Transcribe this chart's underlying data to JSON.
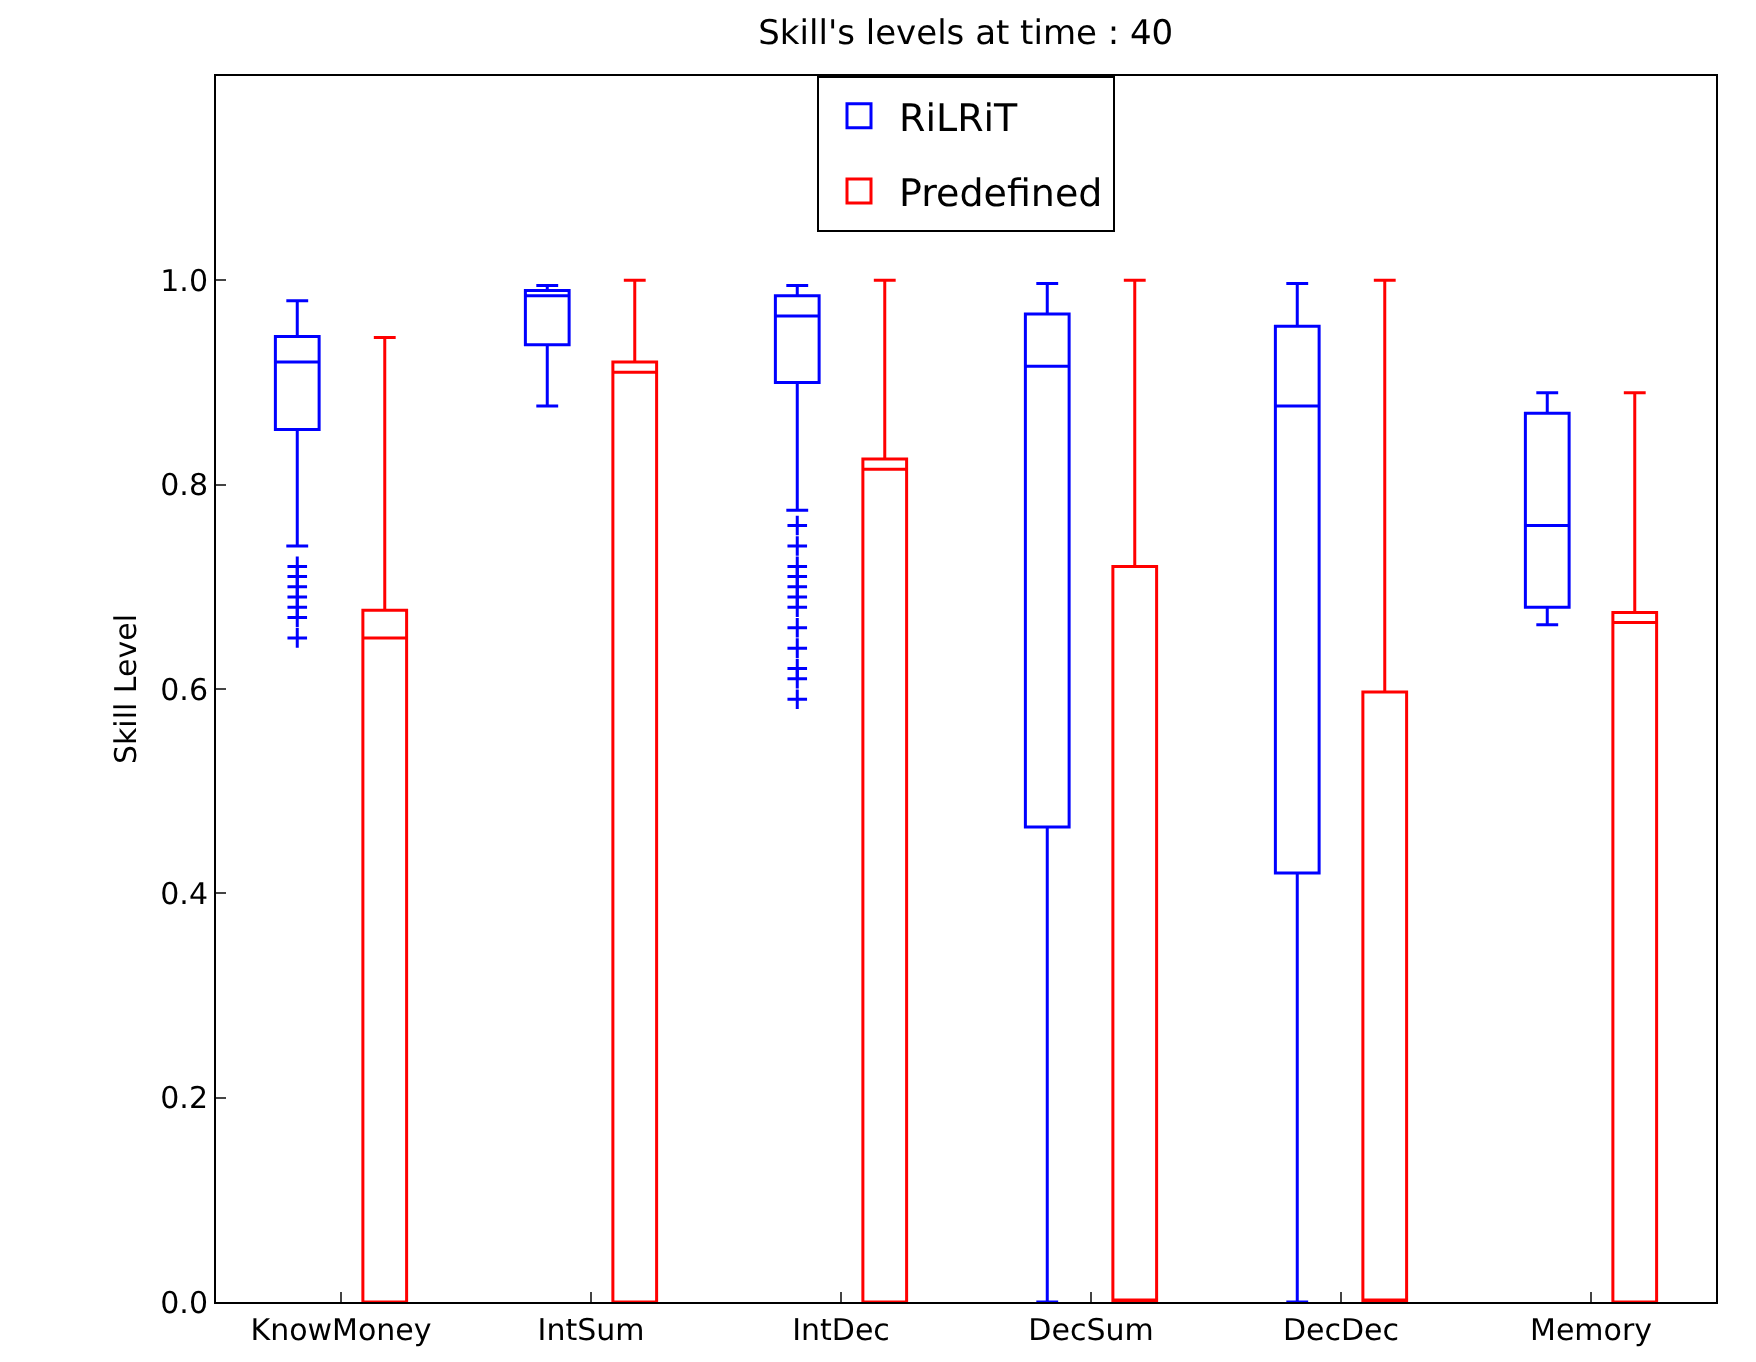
{
  "chart_data": {
    "type": "box",
    "title": "Skill's levels at time : 40",
    "ylabel": "Skill Level",
    "categories": [
      "KnowMoney",
      "IntSum",
      "IntDec",
      "DecSum",
      "DecDec",
      "Memory"
    ],
    "ylim": [
      0,
      1.2
    ],
    "yticks": [
      {
        "value": 0,
        "label": "0.0"
      },
      {
        "value": 0.2,
        "label": "0.2"
      },
      {
        "value": 0.4,
        "label": "0.4"
      },
      {
        "value": 0.6,
        "label": "0.6"
      },
      {
        "value": 0.8,
        "label": "0.8"
      },
      {
        "value": 1,
        "label": "1.0"
      }
    ],
    "grid": false,
    "legend": "top",
    "marker": "cross",
    "series": [
      {
        "name": "RiLRiT",
        "color": "#0000ff",
        "boxes": [
          {
            "low": 0.74,
            "q1": 0.854,
            "median": 0.92,
            "q3": 0.945,
            "high": 0.98,
            "outliers": [
              0.72,
              0.71,
              0.7,
              0.69,
              0.68,
              0.67,
              0.65
            ]
          },
          {
            "low": 0.877,
            "q1": 0.937,
            "median": 0.985,
            "q3": 0.99,
            "high": 0.995
          },
          {
            "low": 0.775,
            "q1": 0.9,
            "median": 0.965,
            "q3": 0.985,
            "high": 0.995,
            "outliers": [
              0.76,
              0.74,
              0.72,
              0.71,
              0.7,
              0.69,
              0.68,
              0.66,
              0.64,
              0.62,
              0.61,
              0.59
            ]
          },
          {
            "low": 0,
            "q1": 0.465,
            "median": 0.916,
            "q3": 0.967,
            "high": 0.997
          },
          {
            "low": 0,
            "q1": 0.42,
            "median": 0.877,
            "q3": 0.955,
            "high": 0.997
          },
          {
            "low": 0.663,
            "q1": 0.68,
            "median": 0.76,
            "q3": 0.87,
            "high": 0.89
          }
        ]
      },
      {
        "name": "Predefined",
        "color": "#ff0000",
        "boxes": [
          {
            "low": 0,
            "q1": 0,
            "median": 0.65,
            "q3": 0.677,
            "high": 0.944
          },
          {
            "low": 0,
            "q1": 0,
            "median": 0.91,
            "q3": 0.92,
            "high": 1.0
          },
          {
            "low": 0,
            "q1": 0,
            "median": 0.815,
            "q3": 0.825,
            "high": 1.0
          },
          {
            "low": 0,
            "q1": 0,
            "median": 0,
            "q3": 0.72,
            "high": 1.0
          },
          {
            "low": 0,
            "q1": 0,
            "median": 0,
            "q3": 0.597,
            "high": 1.0
          },
          {
            "low": 0,
            "q1": 0,
            "median": 0.665,
            "q3": 0.675,
            "high": 0.89
          }
        ]
      }
    ]
  }
}
